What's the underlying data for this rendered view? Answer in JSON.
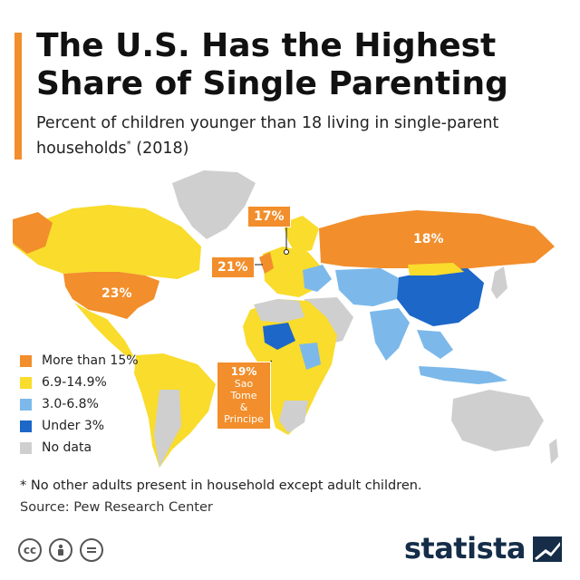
{
  "header": {
    "title": "The U.S. Has the Highest Share of Single Parenting",
    "subtitle": "Percent of children younger than 18 living in single-parent households",
    "subtitle_mark": "*",
    "subtitle_year": "(2018)"
  },
  "map": {
    "callouts": [
      {
        "id": "us",
        "label": "23%"
      },
      {
        "id": "russia",
        "label": "18%"
      },
      {
        "id": "denmark",
        "label": "17%"
      },
      {
        "id": "uk",
        "label": "21%"
      },
      {
        "id": "sao_tome",
        "label": "19%",
        "line1": "Sao Tome",
        "line2": "& Principe"
      }
    ]
  },
  "legend": {
    "items": [
      {
        "label": "More than 15%",
        "color": "#f28e2b"
      },
      {
        "label": "6.9-14.9%",
        "color": "#f9dc2c"
      },
      {
        "label": "3.0-6.8%",
        "color": "#7cb9ea"
      },
      {
        "label": "Under 3%",
        "color": "#1c67c8"
      },
      {
        "label": "No data",
        "color": "#cfcfcf"
      }
    ]
  },
  "footer": {
    "footnote": "* No other adults present in household except adult children.",
    "source": "Source: Pew Research Center",
    "brand": "statista",
    "license_icons": [
      "cc-icon",
      "attribution-icon",
      "no-derivatives-icon"
    ]
  },
  "colors": {
    "accent": "#f28e2b",
    "high": "#f28e2b",
    "mid": "#f9dc2c",
    "low": "#7cb9ea",
    "lowest": "#1c67c8",
    "nodata": "#cfcfcf",
    "brand": "#152d48"
  }
}
